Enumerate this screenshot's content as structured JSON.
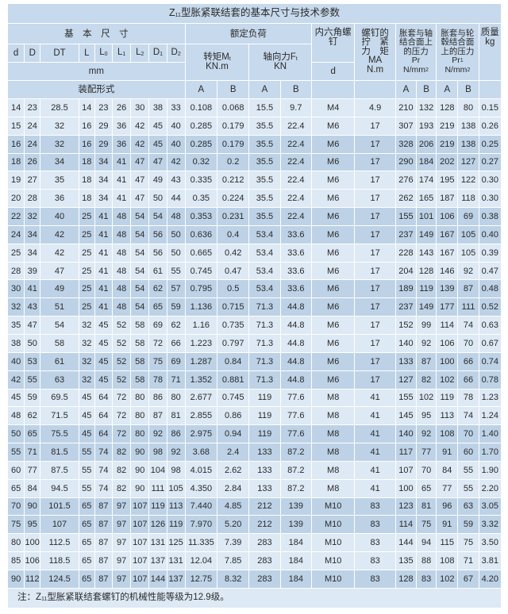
{
  "title": {
    "prefix": "Z",
    "sub": "11",
    "text": "型胀紧联结套的基本尺寸与技术参数"
  },
  "header": {
    "basic_dims": "基　本　尺　寸",
    "rated_load": "额定负荷",
    "hex_screw": "内六角螺钉",
    "screw_torque": {
      "line1": "螺钉的",
      "line2": "拧　紧",
      "line3": "力　矩",
      "symbol": "MA",
      "unit": "N.m"
    },
    "shaft_pressure": {
      "line1": "胀套与轴",
      "line2": "结合面上",
      "line3": "的压力",
      "symbol": "Pr",
      "unit": "N/mm",
      "unit_sup": "2"
    },
    "hub_pressure": {
      "line1": "胀套与轮",
      "line2": "毂结合面",
      "line3": "上的压力",
      "symbol": "Pr",
      "symbol_sup": "1",
      "unit": "N/mm",
      "unit_sup": "2"
    },
    "mass": {
      "label": "质量",
      "unit": "kg"
    },
    "dims": [
      {
        "main": "d",
        "sub": ""
      },
      {
        "main": "D",
        "sub": ""
      },
      {
        "main": "DT",
        "sub": ""
      },
      {
        "main": "L",
        "sub": ""
      },
      {
        "main": "L",
        "sub": "0"
      },
      {
        "main": "L",
        "sub": "1"
      },
      {
        "main": "L",
        "sub": "2"
      },
      {
        "main": "D",
        "sub": "1"
      },
      {
        "main": "D",
        "sub": "2"
      }
    ],
    "torque": {
      "label": "转矩M",
      "sub": "t",
      "unit": "KN.m"
    },
    "axial": {
      "label": "轴向力F",
      "sub": "t",
      "unit": "KN"
    },
    "mm": "mm",
    "screw_d": "d",
    "assembly": "装配形式",
    "a": "A",
    "b": "B"
  },
  "rows": [
    [
      "14",
      "23",
      "28.5",
      "14",
      "23",
      "26",
      "30",
      "38",
      "33",
      "0.108",
      "0.068",
      "15.5",
      "9.7",
      "M4",
      "4.9",
      "210",
      "132",
      "128",
      "80",
      "0.15"
    ],
    [
      "15",
      "24",
      "32",
      "16",
      "29",
      "36",
      "42",
      "45",
      "40",
      "0.285",
      "0.179",
      "35.5",
      "22.4",
      "M6",
      "17",
      "307",
      "193",
      "219",
      "138",
      "0.26"
    ],
    [
      "16",
      "24",
      "32",
      "16",
      "29",
      "36",
      "42",
      "45",
      "40",
      "0.285",
      "0.179",
      "35.5",
      "22.4",
      "M6",
      "17",
      "328",
      "206",
      "219",
      "138",
      "0.25"
    ],
    [
      "18",
      "26",
      "34",
      "18",
      "34",
      "41",
      "47",
      "47",
      "42",
      "0.32",
      "0.2",
      "35.5",
      "22.4",
      "M6",
      "17",
      "290",
      "184",
      "202",
      "127",
      "0.27"
    ],
    [
      "19",
      "27",
      "35",
      "18",
      "34",
      "41",
      "47",
      "49",
      "43",
      "0.335",
      "0.212",
      "35.5",
      "22.4",
      "M6",
      "17",
      "276",
      "174",
      "195",
      "122",
      "0.30"
    ],
    [
      "20",
      "28",
      "36",
      "18",
      "34",
      "41",
      "47",
      "50",
      "44",
      "0.35",
      "0.224",
      "35.5",
      "22.4",
      "M6",
      "17",
      "262",
      "165",
      "187",
      "118",
      "0.30"
    ],
    [
      "22",
      "32",
      "40",
      "25",
      "41",
      "48",
      "54",
      "54",
      "48",
      "0.353",
      "0.231",
      "35.5",
      "22.4",
      "M6",
      "17",
      "155",
      "101",
      "106",
      "69",
      "0.38"
    ],
    [
      "24",
      "34",
      "42",
      "25",
      "41",
      "48",
      "54",
      "56",
      "50",
      "0.636",
      "0.4",
      "53.4",
      "33.6",
      "M6",
      "17",
      "237",
      "149",
      "167",
      "105",
      "0.40"
    ],
    [
      "25",
      "34",
      "42",
      "25",
      "41",
      "48",
      "54",
      "56",
      "50",
      "0.665",
      "0.42",
      "53.4",
      "33.6",
      "M6",
      "17",
      "228",
      "143",
      "167",
      "105",
      "0.39"
    ],
    [
      "28",
      "39",
      "47",
      "25",
      "41",
      "48",
      "54",
      "61",
      "55",
      "0.745",
      "0.47",
      "53.4",
      "33.6",
      "M6",
      "17",
      "204",
      "128",
      "146",
      "92",
      "0.47"
    ],
    [
      "30",
      "41",
      "49",
      "25",
      "41",
      "48",
      "54",
      "62",
      "57",
      "0.795",
      "0.5",
      "53.4",
      "33.6",
      "M6",
      "17",
      "189",
      "119",
      "139",
      "87",
      "0.48"
    ],
    [
      "32",
      "43",
      "51",
      "25",
      "41",
      "48",
      "54",
      "65",
      "59",
      "1.136",
      "0.715",
      "71.3",
      "44.8",
      "M6",
      "17",
      "237",
      "149",
      "177",
      "111",
      "0.52"
    ],
    [
      "35",
      "47",
      "54",
      "32",
      "45",
      "52",
      "58",
      "69",
      "62",
      "1.16",
      "0.735",
      "71.3",
      "44.8",
      "M6",
      "17",
      "152",
      "99",
      "114",
      "74",
      "0.63"
    ],
    [
      "38",
      "50",
      "58",
      "32",
      "45",
      "52",
      "58",
      "72",
      "66",
      "1.223",
      "0.797",
      "71.3",
      "44.8",
      "M6",
      "17",
      "140",
      "92",
      "106",
      "70",
      "0.67"
    ],
    [
      "40",
      "53",
      "61",
      "32",
      "45",
      "52",
      "58",
      "75",
      "69",
      "1.287",
      "0.84",
      "71.3",
      "44.8",
      "M6",
      "17",
      "133",
      "87",
      "100",
      "66",
      "0.74"
    ],
    [
      "42",
      "55",
      "63",
      "32",
      "45",
      "52",
      "58",
      "78",
      "71",
      "1.352",
      "0.881",
      "71.3",
      "44.8",
      "M6",
      "17",
      "127",
      "82",
      "102",
      "66",
      "0.78"
    ],
    [
      "45",
      "59",
      "69.5",
      "45",
      "64",
      "72",
      "80",
      "86",
      "80",
      "2.677",
      "0.745",
      "119",
      "77.6",
      "M8",
      "41",
      "155",
      "102",
      "119",
      "78",
      "1.23"
    ],
    [
      "48",
      "62",
      "71.5",
      "45",
      "64",
      "72",
      "80",
      "87",
      "81",
      "2.855",
      "0.86",
      "119",
      "77.6",
      "M8",
      "41",
      "145",
      "95",
      "113",
      "74",
      "1.24"
    ],
    [
      "50",
      "65",
      "75.5",
      "45",
      "64",
      "72",
      "80",
      "92",
      "86",
      "2.975",
      "0.94",
      "119",
      "77.6",
      "M8",
      "41",
      "140",
      "92",
      "108",
      "70",
      "1.40"
    ],
    [
      "55",
      "71",
      "81.5",
      "55",
      "74",
      "82",
      "90",
      "98",
      "92",
      "3.68",
      "2.4",
      "133",
      "87.2",
      "M8",
      "41",
      "117",
      "77",
      "91",
      "60",
      "1.70"
    ],
    [
      "60",
      "77",
      "87.5",
      "55",
      "74",
      "82",
      "90",
      "104",
      "98",
      "4.015",
      "2.62",
      "133",
      "87.2",
      "M8",
      "41",
      "107",
      "70",
      "84",
      "55",
      "1.90"
    ],
    [
      "65",
      "84",
      "94.5",
      "55",
      "74",
      "82",
      "90",
      "111",
      "105",
      "4.350",
      "2.84",
      "133",
      "87.2",
      "M8",
      "41",
      "100",
      "65",
      "77",
      "55",
      "2.20"
    ],
    [
      "70",
      "90",
      "101.5",
      "65",
      "87",
      "97",
      "107",
      "119",
      "113",
      "7.440",
      "4.85",
      "212",
      "139",
      "M10",
      "83",
      "123",
      "81",
      "96",
      "63",
      "3.05"
    ],
    [
      "75",
      "95",
      "107",
      "65",
      "87",
      "97",
      "107",
      "126",
      "119",
      "7.970",
      "5.20",
      "212",
      "139",
      "M10",
      "83",
      "114",
      "75",
      "91",
      "59",
      "3.32"
    ],
    [
      "80",
      "100",
      "112.5",
      "65",
      "87",
      "97",
      "107",
      "131",
      "125",
      "11.335",
      "7.39",
      "283",
      "184",
      "M10",
      "83",
      "144",
      "94",
      "115",
      "75",
      "3.50"
    ],
    [
      "85",
      "106",
      "118.5",
      "65",
      "87",
      "97",
      "107",
      "137",
      "131",
      "12.04",
      "7.85",
      "283",
      "184",
      "M10",
      "83",
      "135",
      "88",
      "108",
      "71",
      "3.81"
    ],
    [
      "90",
      "112",
      "124.5",
      "65",
      "87",
      "97",
      "107",
      "144",
      "137",
      "12.75",
      "8.32",
      "283",
      "184",
      "M10",
      "83",
      "128",
      "83",
      "102",
      "67",
      "4.20"
    ]
  ],
  "note": {
    "prefix": "注：Z",
    "sub": "11",
    "text": "型胀紧联结套螺钉的机械性能等级为12.9级。"
  },
  "colors": {
    "header": "#c7d9ec",
    "row_light": "#dde9f4",
    "row_dark": "#bdd2e6",
    "border": "#ffffff"
  }
}
